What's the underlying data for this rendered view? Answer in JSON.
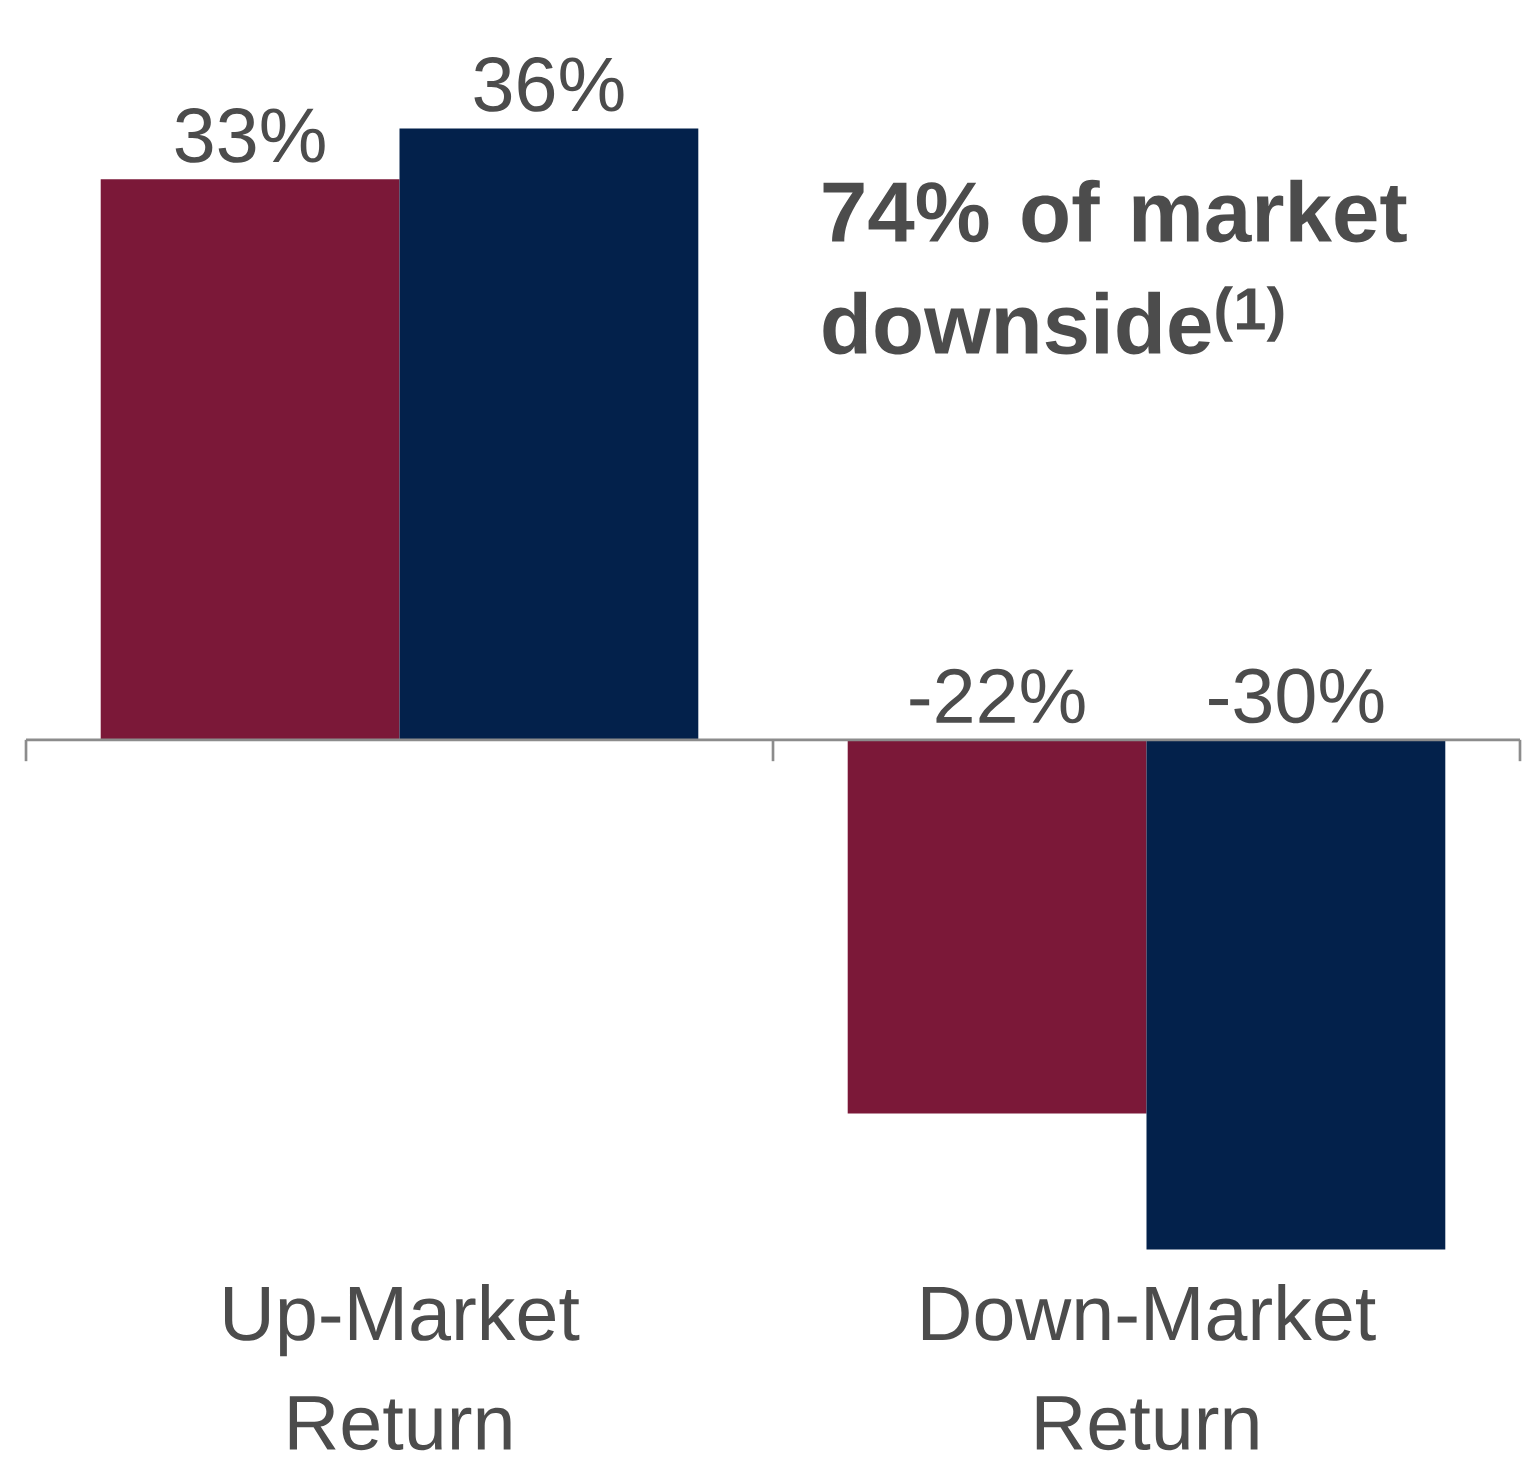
{
  "chart_data": {
    "type": "bar",
    "categories": [
      "Up-Market Return",
      "Down-Market Return"
    ],
    "series": [
      {
        "color": "#7b1838",
        "values": [
          33,
          -22
        ],
        "value_labels": [
          "33%",
          "-22%"
        ]
      },
      {
        "color": "#03214b",
        "values": [
          36,
          -30
        ],
        "value_labels": [
          "36%",
          "-30%"
        ]
      }
    ],
    "annotations": [
      "74% of market downside$^{(1)}$"
    ]
  }
}
